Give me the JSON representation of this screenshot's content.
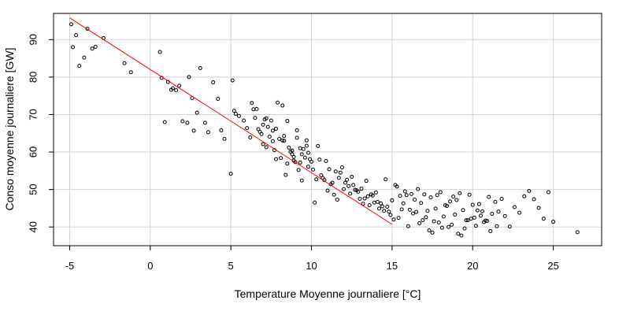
{
  "chart_data": {
    "type": "scatter",
    "title": "",
    "xlabel": "Temperature Moyenne journaliere [°C]",
    "ylabel": "Conso moyenne journaliere [GW]",
    "xlim": [
      -6,
      28
    ],
    "ylim": [
      35,
      97
    ],
    "x_ticks": [
      -5,
      0,
      5,
      10,
      15,
      20,
      25
    ],
    "y_ticks": [
      40,
      50,
      60,
      70,
      80,
      90
    ],
    "grid": true,
    "colors": {
      "points": "#000000",
      "fit_line": "#ff0000",
      "grid": "#d3d3d3",
      "frame": "#000000"
    },
    "fit_line": {
      "x": [
        -5,
        15
      ],
      "y": [
        95.8,
        40.7
      ]
    },
    "points": {
      "x": [
        -4.9,
        -4.8,
        -4.6,
        -4.4,
        -4.1,
        -3.9,
        -3.6,
        -3.4,
        -2.9,
        -1.6,
        -1.2,
        0.6,
        0.7,
        0.9,
        1.1,
        1.3,
        1.4,
        1.6,
        1.8,
        2.0,
        2.3,
        2.4,
        2.6,
        2.7,
        2.9,
        3.1,
        3.4,
        3.6,
        3.9,
        4.2,
        4.4,
        4.6,
        5.0,
        5.1,
        5.2,
        5.3,
        5.5,
        5.8,
        6.0,
        6.2,
        6.3,
        6.5,
        6.6,
        6.7,
        6.8,
        6.9,
        7.0,
        7.1,
        7.2,
        7.3,
        7.4,
        7.5,
        7.6,
        7.7,
        7.8,
        7.9,
        8.0,
        8.1,
        8.2,
        8.3,
        8.4,
        8.5,
        8.6,
        8.7,
        8.8,
        8.9,
        9.0,
        9.1,
        9.2,
        9.3,
        9.4,
        9.5,
        9.6,
        9.7,
        9.8,
        9.9,
        10.0,
        10.2,
        10.4,
        10.6,
        10.8,
        11.0,
        11.2,
        11.4,
        11.6,
        11.8,
        12.0,
        12.2,
        12.4,
        12.6,
        12.8,
        13.0,
        13.2,
        13.4,
        13.6,
        13.8,
        14.0,
        14.2,
        14.4,
        14.6,
        14.8,
        15.0,
        15.2,
        15.4,
        15.6,
        15.8,
        16.0,
        16.2,
        16.4,
        16.6,
        16.8,
        17.0,
        17.2,
        17.4,
        17.6,
        17.8,
        18.0,
        18.2,
        18.4,
        18.6,
        18.8,
        19.0,
        19.2,
        19.4,
        19.6,
        19.8,
        20.0,
        20.2,
        20.4,
        20.6,
        20.8,
        21.0,
        21.2,
        21.4,
        21.6,
        21.8,
        22.0,
        22.3,
        22.6,
        22.9,
        23.2,
        23.5,
        23.8,
        24.1,
        24.4,
        24.7,
        25.0,
        26.5,
        7.2,
        7.8,
        8.3,
        8.9,
        9.4,
        10.1,
        10.7,
        11.3,
        11.9,
        12.5,
        13.1,
        13.7,
        14.3,
        14.9,
        15.5,
        16.1,
        16.7,
        17.3,
        17.9,
        18.5,
        19.1,
        19.7,
        20.3,
        20.9,
        21.5,
        6.4,
        7.0,
        7.6,
        8.2,
        8.8,
        9.3,
        9.8,
        10.3,
        10.9,
        11.5,
        12.1,
        12.7,
        13.3,
        13.9,
        14.5,
        15.1,
        15.7,
        16.3,
        16.9,
        17.5,
        18.1,
        18.7,
        19.3,
        19.9,
        20.5,
        21.1,
        8.5,
        9.1,
        9.7,
        10.5,
        11.1,
        11.7,
        12.3,
        12.9,
        13.5,
        14.1,
        14.7,
        15.3,
        15.9,
        16.5,
        17.1,
        17.7,
        18.3,
        18.9,
        19.5,
        20.1,
        20.7
      ],
      "y": [
        94.1,
        88.0,
        91.2,
        83.0,
        85.2,
        92.9,
        87.6,
        88.1,
        90.4,
        83.7,
        81.3,
        86.7,
        79.8,
        68.0,
        78.7,
        76.6,
        77.0,
        76.5,
        77.7,
        68.2,
        67.8,
        80.0,
        74.4,
        65.7,
        70.5,
        82.4,
        67.8,
        65.3,
        78.6,
        74.2,
        65.8,
        63.5,
        54.2,
        79.1,
        71.0,
        70.2,
        69.6,
        68.4,
        66.4,
        63.9,
        73.1,
        69.1,
        71.5,
        66.1,
        65.4,
        64.8,
        62.1,
        68.7,
        61.3,
        66.7,
        64.1,
        68.4,
        62.9,
        60.5,
        58.1,
        73.2,
        63.5,
        58.4,
        72.4,
        64.3,
        53.9,
        56.9,
        61.2,
        60.1,
        59.4,
        58.7,
        57.3,
        63.8,
        55.2,
        61.0,
        52.4,
        60.8,
        58.5,
        63.1,
        56.1,
        58.1,
        57.4,
        46.5,
        61.6,
        53.8,
        52.5,
        49.7,
        51.4,
        48.6,
        47.3,
        54.5,
        50.1,
        52.6,
        48.9,
        51.2,
        49.8,
        47.5,
        46.2,
        52.3,
        45.8,
        48.4,
        49.2,
        44.9,
        45.5,
        52.7,
        44.1,
        47.1,
        51.2,
        42.4,
        44.7,
        49.5,
        40.2,
        48.8,
        47.3,
        50.1,
        46.4,
        48.7,
        44.3,
        47.9,
        41.5,
        48.5,
        49.3,
        42.8,
        45.6,
        46.8,
        48.1,
        47.2,
        49.0,
        44.5,
        41.8,
        48.6,
        45.9,
        40.3,
        46.1,
        44.2,
        41.7,
        48.0,
        43.5,
        46.7,
        44.1,
        47.5,
        42.9,
        40.1,
        45.3,
        43.8,
        48.2,
        49.6,
        47.4,
        45.1,
        42.2,
        49.3,
        41.4,
        38.6,
        69.0,
        66.2,
        63.0,
        57.7,
        59.4,
        55.3,
        53.1,
        51.8,
        55.9,
        53.4,
        50.2,
        48.7,
        46.3,
        43.2,
        48.3,
        44.6,
        41.0,
        39.1,
        41.2,
        40.0,
        38.2,
        41.8,
        44.4,
        41.6,
        40.2,
        71.4,
        67.3,
        65.7,
        63.1,
        60.4,
        57.2,
        59.8,
        52.7,
        57.6,
        54.8,
        51.8,
        49.9,
        47.6,
        46.5,
        44.3,
        42.0,
        46.3,
        43.6,
        41.8,
        38.5,
        39.8,
        40.6,
        37.7,
        42.2,
        43.0,
        38.9,
        68.3,
        65.8,
        61.7,
        58.0,
        55.4,
        53.1,
        50.9,
        49.4,
        48.2,
        46.7,
        45.4,
        50.8,
        48.5,
        44.0,
        42.6,
        44.9,
        45.8,
        43.3,
        39.6,
        42.5,
        41.3
      ]
    }
  }
}
